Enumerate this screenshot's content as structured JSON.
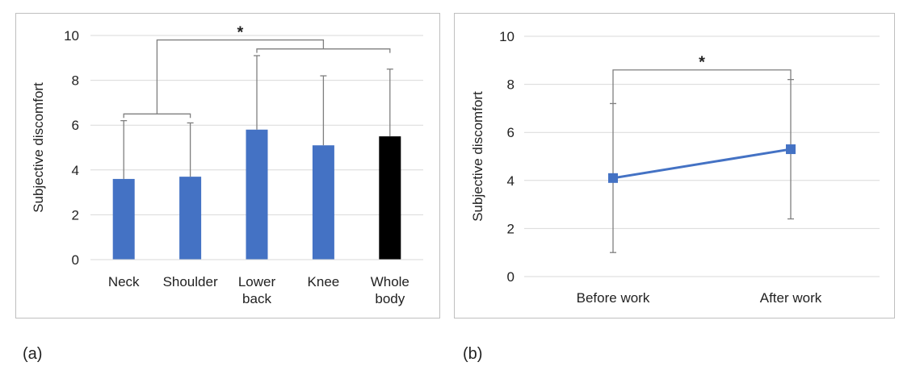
{
  "panels": {
    "a": {
      "label": "(a)"
    },
    "b": {
      "label": "(b)"
    }
  },
  "chart_data": [
    {
      "type": "bar",
      "ylabel": "Subjective discomfort",
      "ylim": [
        0,
        10
      ],
      "yticks": [
        0,
        2,
        4,
        6,
        8,
        10
      ],
      "grid": true,
      "categories": [
        [
          "Neck"
        ],
        [
          "Shoulder"
        ],
        [
          "Lower",
          "back"
        ],
        [
          "Knee"
        ],
        [
          "Whole",
          "body"
        ]
      ],
      "values": [
        3.6,
        3.7,
        5.8,
        5.1,
        5.5
      ],
      "error_upper": [
        2.6,
        2.4,
        3.3,
        3.1,
        3.0
      ],
      "bar_colors": [
        "#4472c4",
        "#4472c4",
        "#4472c4",
        "#4472c4",
        "#000000"
      ],
      "significance": {
        "marker": "*",
        "inner_bracket_left": {
          "from": 0,
          "to": 1,
          "y": 6.5
        },
        "inner_bracket_right": {
          "from": 2,
          "to": 4,
          "y": 9.4
        },
        "outer_bracket": {
          "from_group": [
            0,
            1
          ],
          "to_group": [
            2,
            4
          ],
          "y": 9.8
        }
      }
    },
    {
      "type": "line",
      "ylabel": "Subjective discomfort",
      "ylim": [
        0,
        10
      ],
      "yticks": [
        0,
        2,
        4,
        6,
        8,
        10
      ],
      "grid": true,
      "categories": [
        "Before work",
        "After work"
      ],
      "values": [
        4.1,
        5.3
      ],
      "error_low": [
        1.0,
        2.4
      ],
      "error_high": [
        7.2,
        8.2
      ],
      "line_color": "#4472c4",
      "marker": "square",
      "significance": {
        "marker": "*",
        "from": 0,
        "to": 1,
        "y": 8.6
      }
    }
  ]
}
